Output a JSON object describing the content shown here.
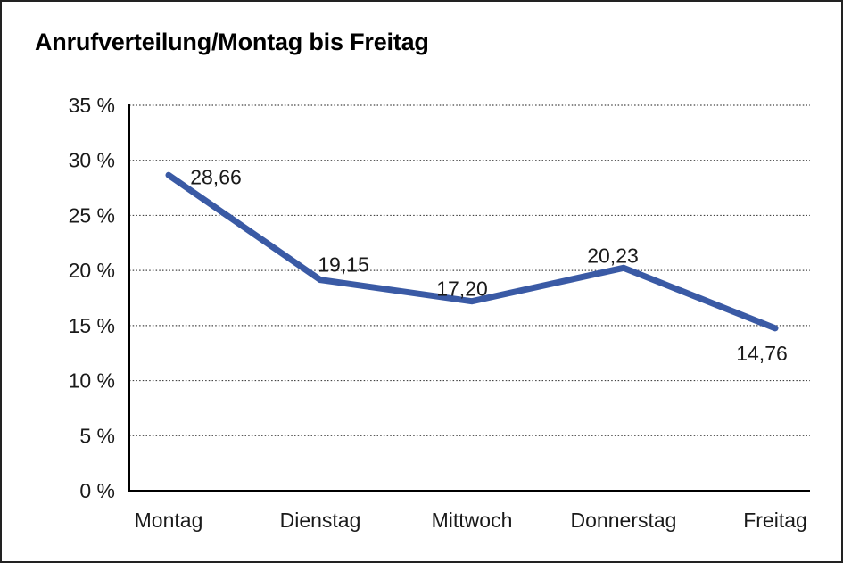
{
  "title": "Anrufverteilung/Montag bis Freitag",
  "chart_data": {
    "type": "line",
    "title": "Anrufverteilung/Montag bis Freitag",
    "categories": [
      "Montag",
      "Dienstag",
      "Mittwoch",
      "Donnerstag",
      "Freitag"
    ],
    "values": [
      28.66,
      19.15,
      17.2,
      20.23,
      14.76
    ],
    "value_labels": [
      "28,66",
      "19,15",
      "17,20",
      "20,23",
      "14,76"
    ],
    "xlabel": "",
    "ylabel": "",
    "ylim": [
      0,
      35
    ],
    "y_ticks": [
      0,
      5,
      10,
      15,
      20,
      25,
      30,
      35
    ],
    "y_tick_labels": [
      "0 %",
      "5 %",
      "10 %",
      "15 %",
      "20 %",
      "25 %",
      "30 %",
      "35 %"
    ],
    "grid": "horizontal-dotted",
    "legend": "none"
  },
  "colors": {
    "line": "#3A5AA5",
    "text": "#1a1a1a",
    "grid": "#444444",
    "axis": "#000000",
    "background": "#ffffff",
    "border": "#222222"
  }
}
